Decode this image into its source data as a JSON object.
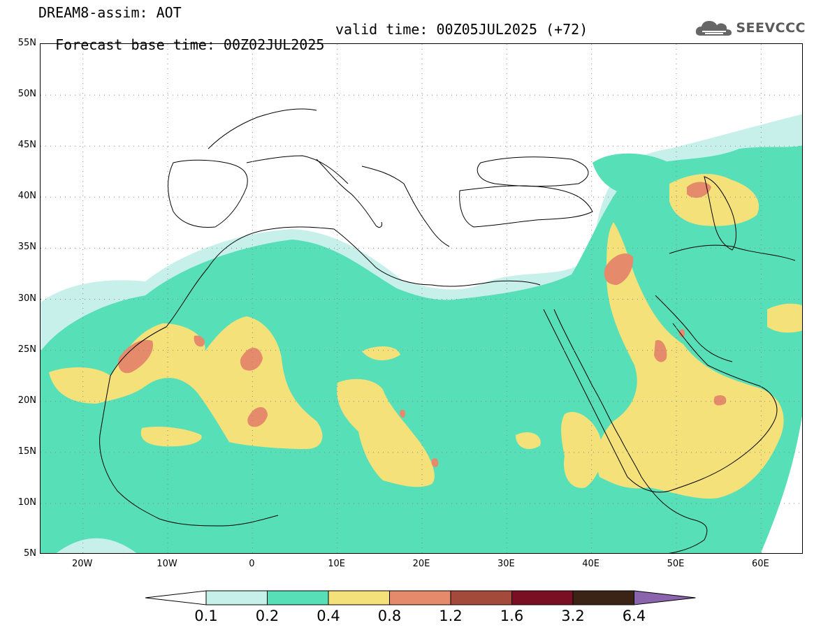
{
  "title": {
    "line1": "DREAM8-assim: AOT",
    "base_time": "Forecast base time: 00Z02JUL2025",
    "valid_time": "valid time: 00Z05JUL2025 (+72)"
  },
  "logo": {
    "icon": "cloud-icon",
    "text": "SEEVCCC"
  },
  "map": {
    "lat_labels": [
      "55N",
      "50N",
      "45N",
      "40N",
      "35N",
      "30N",
      "25N",
      "20N",
      "15N",
      "10N",
      "5N"
    ],
    "lon_labels": [
      "20W",
      "10W",
      "0",
      "10E",
      "20E",
      "30E",
      "40E",
      "50E",
      "60E"
    ],
    "lat_range": [
      5,
      55
    ],
    "lon_range": [
      -25,
      65
    ]
  },
  "legend": {
    "thresholds": [
      "0.1",
      "0.2",
      "0.4",
      "0.8",
      "1.2",
      "1.6",
      "3.2",
      "6.4"
    ],
    "colors": [
      "#c8f0eb",
      "#57dfb8",
      "#f5e17a",
      "#e58a6a",
      "#a44a3a",
      "#7a0f23",
      "#3b2415"
    ],
    "under_color": "#ffffff",
    "over_color": "#8a64ad"
  },
  "level_colors": {
    "l1": "#c8f0eb",
    "l2": "#57dfb8",
    "l3": "#f5e17a",
    "l4": "#e58a6a"
  }
}
